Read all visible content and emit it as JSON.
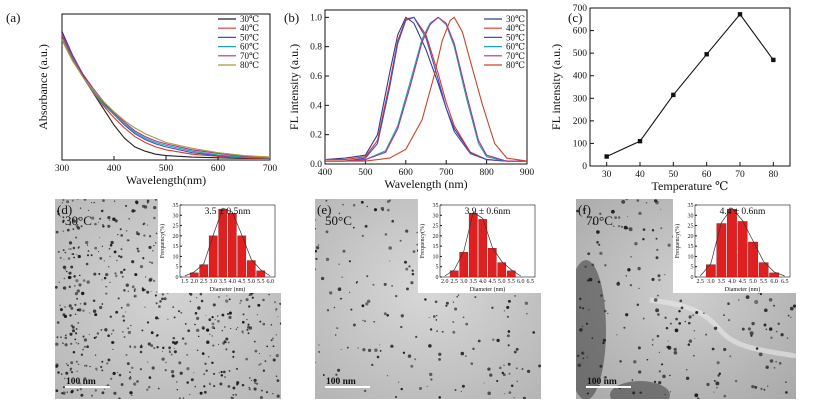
{
  "chart_data": [
    {
      "panel": "(a)",
      "type": "line",
      "xlabel": "Wavelength(nm)",
      "ylabel": "Absorbance (a.u.)",
      "xlim": [
        300,
        700
      ],
      "ylim": [
        0,
        1
      ],
      "xticks": [
        300,
        400,
        500,
        600,
        700
      ],
      "legend": "top-right",
      "series": [
        {
          "name": "30℃",
          "color": "#222222",
          "x": [
            300,
            320,
            340,
            360,
            380,
            400,
            420,
            440,
            460,
            480,
            500,
            550,
            600,
            650,
            700
          ],
          "y": [
            0.88,
            0.72,
            0.58,
            0.46,
            0.35,
            0.24,
            0.15,
            0.09,
            0.06,
            0.04,
            0.03,
            0.02,
            0.015,
            0.01,
            0.01
          ]
        },
        {
          "name": "40℃",
          "color": "#d8392b",
          "x": [
            300,
            320,
            340,
            360,
            380,
            400,
            420,
            440,
            460,
            480,
            500,
            550,
            600,
            650,
            700
          ],
          "y": [
            0.85,
            0.7,
            0.57,
            0.46,
            0.37,
            0.29,
            0.22,
            0.16,
            0.12,
            0.09,
            0.07,
            0.04,
            0.025,
            0.015,
            0.01
          ]
        },
        {
          "name": "50℃",
          "color": "#3a4fd0",
          "x": [
            300,
            320,
            340,
            360,
            380,
            400,
            420,
            440,
            460,
            480,
            500,
            550,
            600,
            650,
            700
          ],
          "y": [
            0.87,
            0.72,
            0.59,
            0.48,
            0.39,
            0.31,
            0.24,
            0.18,
            0.14,
            0.11,
            0.09,
            0.05,
            0.03,
            0.02,
            0.015
          ]
        },
        {
          "name": "60℃",
          "color": "#1aa6a6",
          "x": [
            300,
            320,
            340,
            360,
            380,
            400,
            420,
            440,
            460,
            480,
            500,
            550,
            600,
            650,
            700
          ],
          "y": [
            0.83,
            0.69,
            0.57,
            0.47,
            0.38,
            0.31,
            0.25,
            0.19,
            0.15,
            0.12,
            0.1,
            0.06,
            0.035,
            0.02,
            0.015
          ]
        },
        {
          "name": "70℃",
          "color": "#b0308f",
          "x": [
            300,
            320,
            340,
            360,
            380,
            400,
            420,
            440,
            460,
            480,
            500,
            550,
            600,
            650,
            700
          ],
          "y": [
            0.86,
            0.71,
            0.59,
            0.49,
            0.4,
            0.32,
            0.26,
            0.2,
            0.16,
            0.13,
            0.11,
            0.07,
            0.045,
            0.025,
            0.02
          ]
        },
        {
          "name": "80℃",
          "color": "#a89a36",
          "x": [
            300,
            320,
            340,
            360,
            380,
            400,
            420,
            440,
            460,
            480,
            500,
            550,
            600,
            650,
            700
          ],
          "y": [
            0.82,
            0.68,
            0.57,
            0.48,
            0.4,
            0.33,
            0.27,
            0.22,
            0.18,
            0.15,
            0.12,
            0.08,
            0.05,
            0.03,
            0.02
          ]
        }
      ]
    },
    {
      "panel": "(b)",
      "type": "line",
      "xlabel": "Wavelength (nm)",
      "ylabel": "FL intensity (a.u.)",
      "xlim": [
        400,
        900
      ],
      "ylim": [
        0,
        1.05
      ],
      "xticks": [
        400,
        500,
        600,
        700,
        800,
        900
      ],
      "yticks": [
        0.0,
        0.2,
        0.4,
        0.6,
        0.8,
        1.0
      ],
      "legend": "top-right",
      "series": [
        {
          "name": "30℃",
          "color": "#3a3a8c",
          "x": [
            400,
            450,
            500,
            530,
            560,
            580,
            600,
            620,
            650,
            680,
            700,
            720,
            760,
            800,
            850,
            900
          ],
          "y": [
            0.03,
            0.04,
            0.06,
            0.2,
            0.62,
            0.88,
            1.0,
            0.96,
            0.78,
            0.55,
            0.38,
            0.24,
            0.08,
            0.03,
            0.02,
            0.02
          ]
        },
        {
          "name": "40℃",
          "color": "#d8392b",
          "x": [
            400,
            450,
            500,
            530,
            560,
            580,
            600,
            620,
            650,
            680,
            700,
            720,
            760,
            800,
            850,
            900
          ],
          "y": [
            0.03,
            0.03,
            0.05,
            0.16,
            0.55,
            0.84,
            0.99,
            1.0,
            0.88,
            0.62,
            0.42,
            0.26,
            0.08,
            0.03,
            0.02,
            0.02
          ]
        },
        {
          "name": "50℃",
          "color": "#3a4fd0",
          "x": [
            400,
            450,
            500,
            530,
            560,
            580,
            600,
            620,
            650,
            680,
            700,
            720,
            760,
            800,
            850,
            900
          ],
          "y": [
            0.02,
            0.02,
            0.04,
            0.14,
            0.52,
            0.82,
            0.98,
            1.0,
            0.86,
            0.58,
            0.38,
            0.22,
            0.07,
            0.03,
            0.02,
            0.02
          ]
        },
        {
          "name": "60℃",
          "color": "#1aa6a6",
          "x": [
            400,
            450,
            500,
            550,
            580,
            610,
            640,
            660,
            680,
            700,
            720,
            750,
            780,
            800,
            850,
            900
          ],
          "y": [
            0.02,
            0.02,
            0.03,
            0.09,
            0.26,
            0.55,
            0.85,
            0.96,
            1.0,
            0.95,
            0.8,
            0.45,
            0.14,
            0.05,
            0.02,
            0.02
          ]
        },
        {
          "name": "70℃",
          "color": "#b0308f",
          "x": [
            400,
            450,
            500,
            550,
            580,
            610,
            640,
            660,
            680,
            700,
            720,
            750,
            780,
            800,
            850,
            900
          ],
          "y": [
            0.02,
            0.02,
            0.03,
            0.08,
            0.24,
            0.52,
            0.83,
            0.95,
            1.0,
            0.96,
            0.82,
            0.48,
            0.16,
            0.06,
            0.02,
            0.02
          ]
        },
        {
          "name": "80℃",
          "color": "#c8452a",
          "x": [
            400,
            500,
            560,
            600,
            640,
            670,
            690,
            710,
            720,
            740,
            760,
            790,
            820,
            850,
            900
          ],
          "y": [
            0.02,
            0.02,
            0.04,
            0.1,
            0.3,
            0.6,
            0.84,
            0.98,
            1.0,
            0.9,
            0.7,
            0.4,
            0.14,
            0.04,
            0.02
          ]
        }
      ]
    },
    {
      "panel": "(c)",
      "type": "line",
      "xlabel": "Temperature ℃",
      "ylabel": "FL intensity (a.u.)",
      "xlim": [
        25,
        85
      ],
      "ylim": [
        0,
        700
      ],
      "xticks": [
        30,
        40,
        50,
        60,
        70,
        80
      ],
      "yticks": [
        0,
        100,
        200,
        300,
        400,
        500,
        600,
        700
      ],
      "series": [
        {
          "color": "#111111",
          "x": [
            30,
            40,
            50,
            60,
            70,
            80
          ],
          "y": [
            42,
            110,
            315,
            495,
            672,
            470
          ]
        }
      ]
    },
    {
      "panel": "(d)",
      "type": "bar",
      "label": "30°C",
      "annotation": "3.5 ± 0.5nm",
      "xlabel": "Diameter (nm)",
      "ylabel": "Frequency(%)",
      "scale": "100 nm",
      "ylim": [
        0,
        35
      ],
      "yticks": [
        0,
        5,
        10,
        15,
        20,
        25,
        30,
        35
      ],
      "xticks": [
        "1.5",
        "2.0",
        "2.5",
        "3.0",
        "3.5",
        "4.0",
        "4.5",
        "5.0",
        "5.5",
        "6.0"
      ],
      "categories": [
        "2.0-2.5",
        "2.5-3.0",
        "3.0-3.5",
        "3.5-4.0",
        "4.0-4.5",
        "4.5-5.0",
        "5.0-5.5",
        "5.5-6.0"
      ],
      "values": [
        2,
        6,
        20,
        33,
        31,
        20,
        8,
        3
      ]
    },
    {
      "panel": "(e)",
      "type": "bar",
      "label": "50°C",
      "annotation": "3.9 ± 0.6nm",
      "xlabel": "Diameter (nm)",
      "ylabel": "Frequency(%)",
      "scale": "100 nm",
      "ylim": [
        0,
        35
      ],
      "yticks": [
        0,
        5,
        10,
        15,
        20,
        25,
        30,
        35
      ],
      "xticks": [
        "2.0",
        "2.5",
        "3.0",
        "3.5",
        "4.0",
        "4.5",
        "5.0",
        "5.5",
        "6.0",
        "6.5"
      ],
      "categories": [
        "2.5-3.0",
        "3.0-3.5",
        "3.5-4.0",
        "4.0-4.5",
        "4.5-5.0",
        "5.0-5.5",
        "5.5-6.0"
      ],
      "values": [
        3,
        12,
        31,
        28,
        14,
        7,
        3
      ]
    },
    {
      "panel": "(f)",
      "type": "bar",
      "label": "70°C",
      "annotation": "4.4 ± 0.6nm",
      "xlabel": "Diameter (nm)",
      "ylabel": "Frequency(%)",
      "scale": "100 nm",
      "ylim": [
        0,
        35
      ],
      "yticks": [
        0,
        5,
        10,
        15,
        20,
        25,
        30,
        35
      ],
      "xticks": [
        "2.5",
        "3.0",
        "3.5",
        "4.0",
        "4.5",
        "5.0",
        "5.5",
        "6.0",
        "6.5"
      ],
      "categories": [
        "3.0-3.5",
        "3.5-4.0",
        "4.0-4.5",
        "4.5-5.0",
        "5.0-5.5",
        "5.5-6.0",
        "6.0-6.5"
      ],
      "values": [
        6,
        26,
        33,
        27,
        17,
        7,
        2
      ]
    }
  ]
}
